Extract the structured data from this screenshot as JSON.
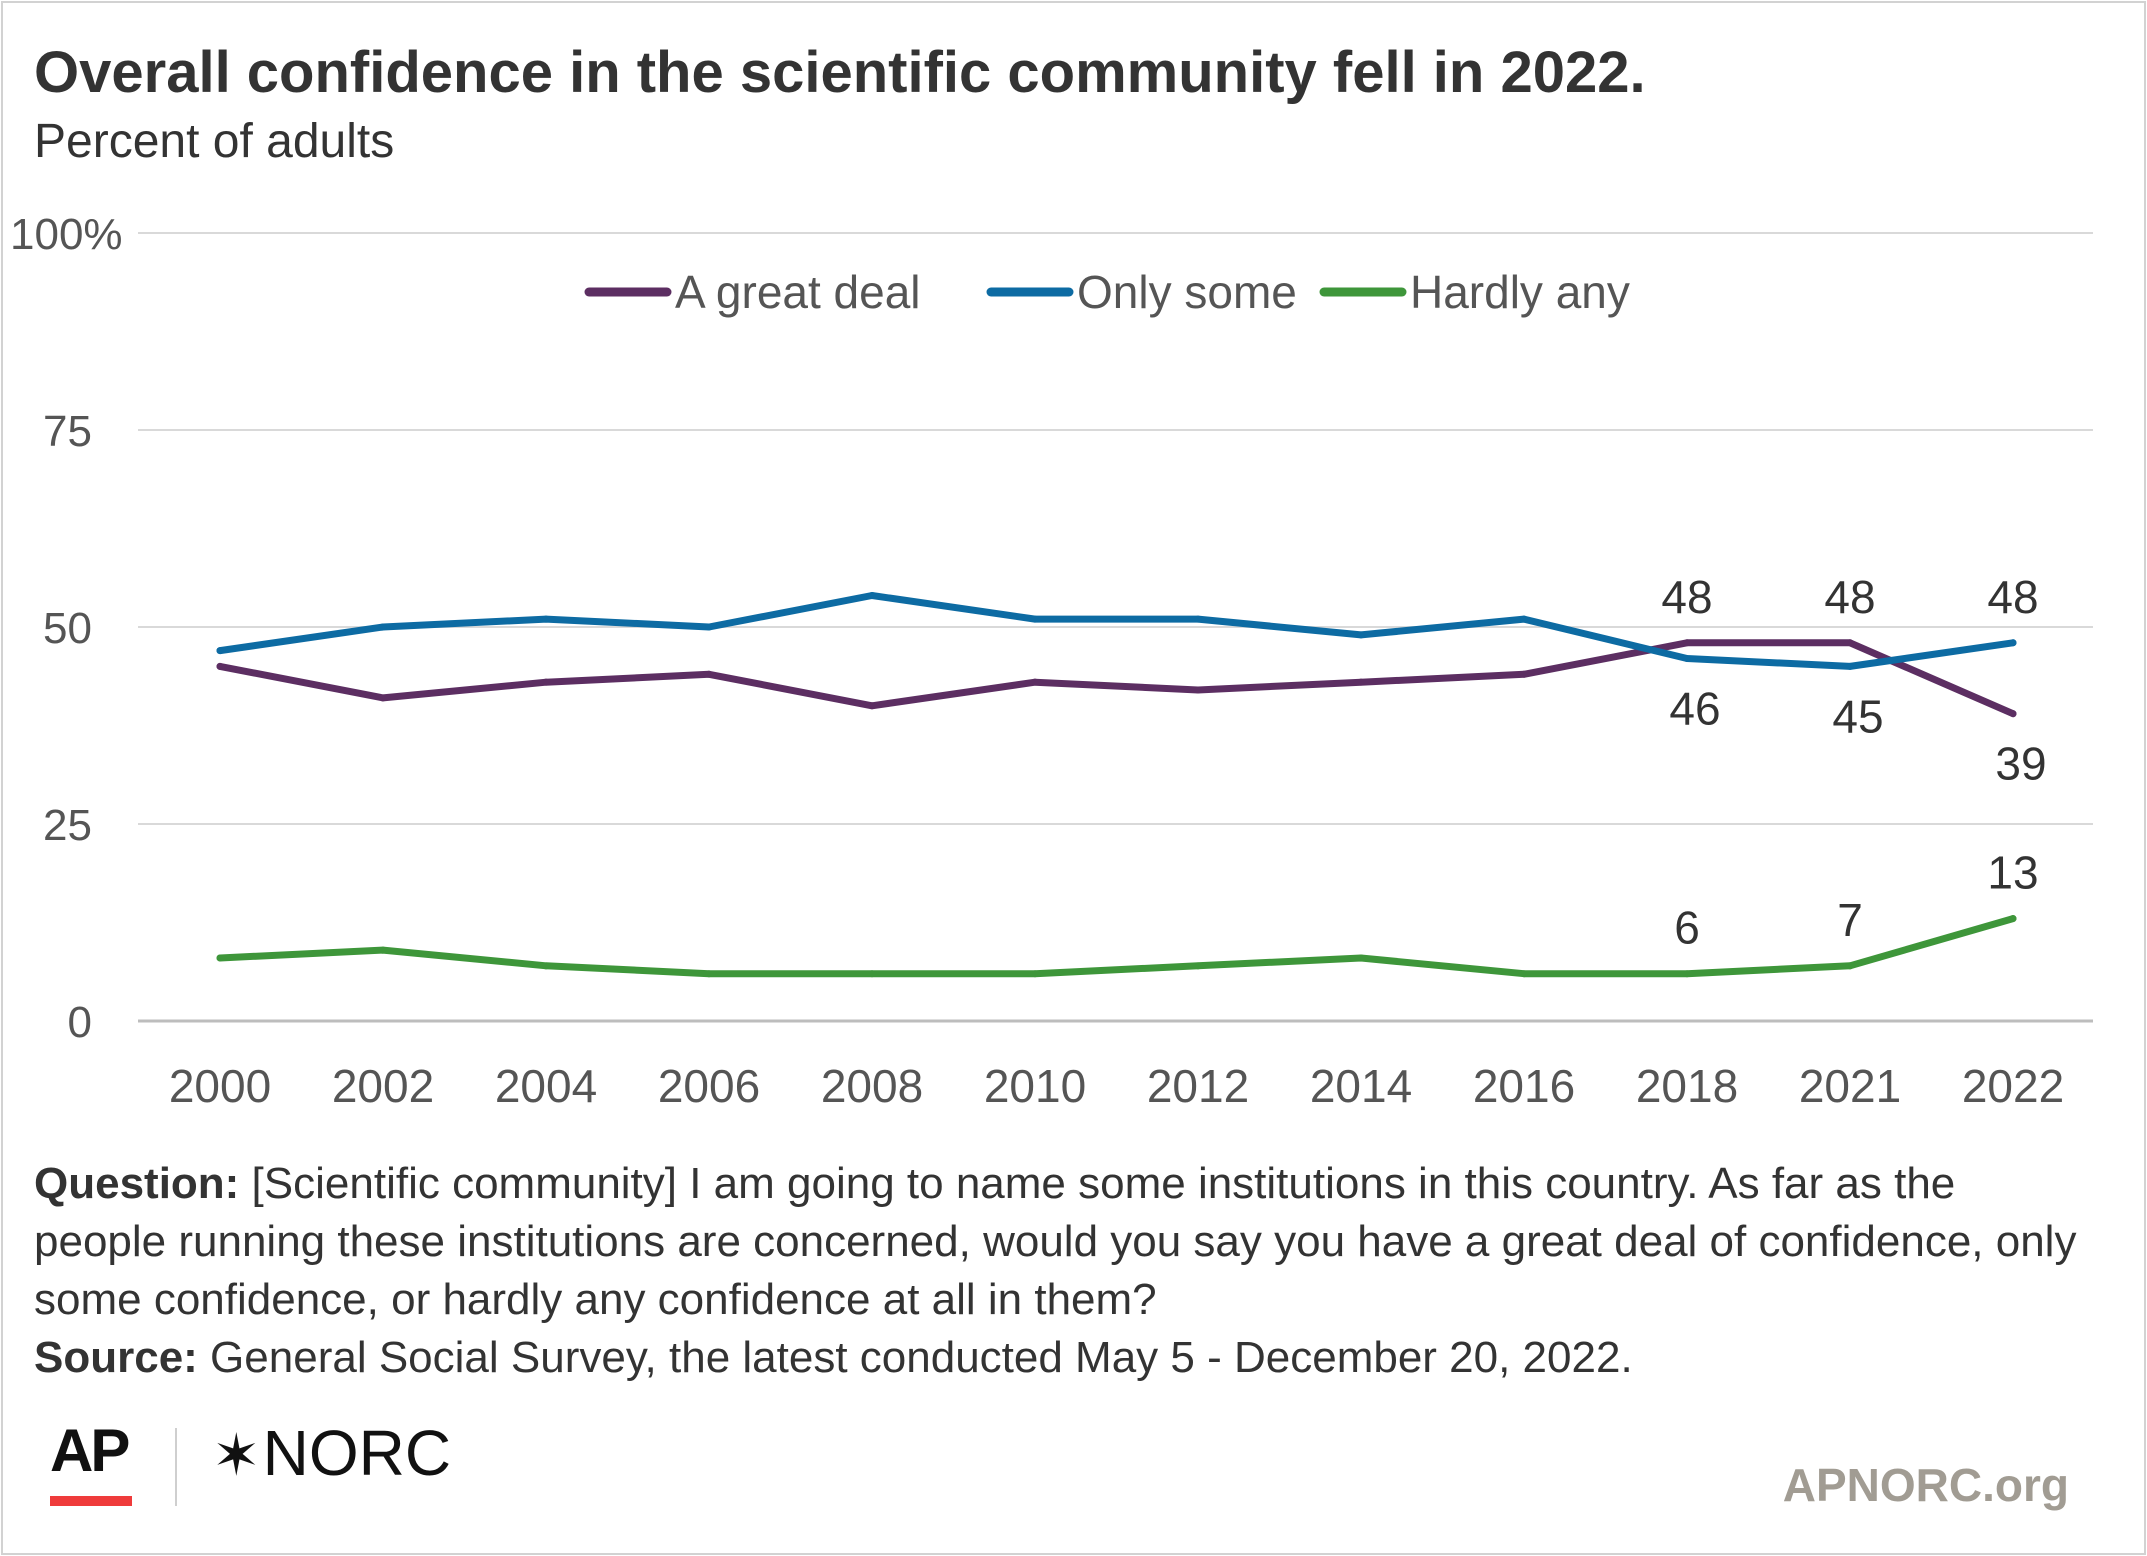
{
  "chart_data": {
    "type": "line",
    "title": "Overall confidence in the scientific community fell in 2022.",
    "subtitle": "Percent of adults",
    "categories": [
      "2000",
      "2002",
      "2004",
      "2006",
      "2008",
      "2010",
      "2012",
      "2014",
      "2016",
      "2018",
      "2021",
      "2022"
    ],
    "y_ticks": [
      "0",
      "25",
      "50",
      "75",
      "100%"
    ],
    "ylim": [
      0,
      100
    ],
    "grid": true,
    "legend_position": "top",
    "series": [
      {
        "name": "A great deal",
        "color": "#5c2e62",
        "values": [
          45,
          41,
          43,
          44,
          40,
          43,
          42,
          43,
          44,
          48,
          48,
          39
        ],
        "data_labels": [
          "",
          "",
          "",
          "",
          "",
          "",
          "",
          "",
          "",
          "48",
          "48",
          "39"
        ]
      },
      {
        "name": "Only some",
        "color": "#0d6ba3",
        "values": [
          47,
          50,
          51,
          50,
          54,
          51,
          51,
          49,
          51,
          46,
          45,
          48
        ],
        "data_labels": [
          "",
          "",
          "",
          "",
          "",
          "",
          "",
          "",
          "",
          "46",
          "45",
          "48"
        ]
      },
      {
        "name": "Hardly any",
        "color": "#3e963a",
        "values": [
          8,
          9,
          7,
          6,
          6,
          6,
          7,
          8,
          6,
          6,
          7,
          13
        ],
        "data_labels": [
          "",
          "",
          "",
          "",
          "",
          "",
          "",
          "",
          "",
          "6",
          "7",
          "13"
        ]
      }
    ]
  },
  "notes": {
    "question_label": "Question:",
    "question_text": " [Scientific community] I am going to name some institutions in this country. As far as the people running these institutions are concerned, would you say you have a great deal of confidence, only some confidence, or hardly any confidence at all in them?",
    "source_label": "Source:",
    "source_text": " General Social Survey, the latest conducted May 5 - December 20, 2022."
  },
  "branding": {
    "ap_logo": "AP",
    "norc_logo_mark": "✶",
    "norc_logo_text": "NORC",
    "site": "APNORC.org",
    "ap_accent": "#ef3b3b",
    "site_color": "#a19c93"
  }
}
